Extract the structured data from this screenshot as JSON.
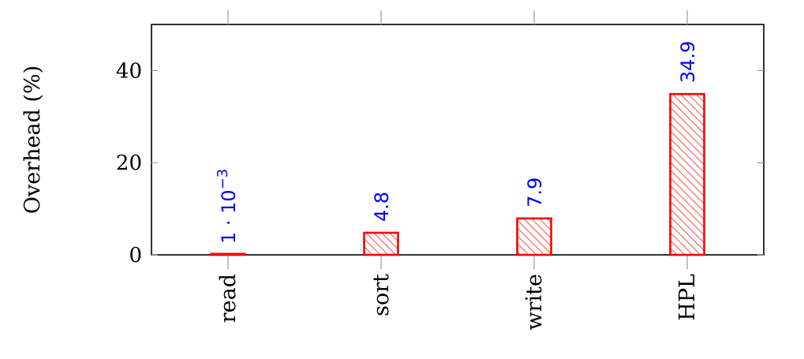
{
  "chart_data": {
    "type": "bar",
    "ylabel": "Overhead (%)",
    "xlabel": "",
    "categories": [
      "read",
      "sort",
      "write",
      "HPL"
    ],
    "values": [
      0.001,
      4.8,
      7.9,
      34.9
    ],
    "value_labels": [
      {
        "base": "1 · 10",
        "exp": "−3"
      },
      {
        "base": "4.8",
        "exp": ""
      },
      {
        "base": "7.9",
        "exp": ""
      },
      {
        "base": "34.9",
        "exp": ""
      }
    ],
    "ylim": [
      0,
      50
    ],
    "yticks": [
      0,
      20,
      40
    ],
    "ytick_labels": [
      "0",
      "20",
      "40"
    ],
    "grid": false,
    "colors": {
      "bar_stroke": "#ff0000",
      "bar_hatch": "#ff0000",
      "value_label": "#0000ff",
      "axis": "#000000",
      "tick": "#999999"
    },
    "bar_fill_pattern": "diagonal-hatch"
  }
}
